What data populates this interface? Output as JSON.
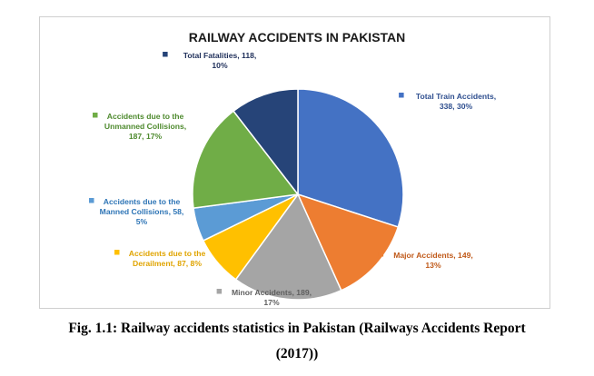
{
  "chart_data": {
    "type": "pie",
    "title": "RAILWAY ACCIDENTS IN PAKISTAN",
    "slices": [
      {
        "name": "Total Train Accidents",
        "value": 338,
        "percent": "30%",
        "color": "#4472C4",
        "text_color": "#2F4F8F",
        "label_lines": [
          "Total Train Accidents,",
          "338, 30%"
        ]
      },
      {
        "name": "Major Accidents",
        "value": 149,
        "percent": "13%",
        "color": "#ED7D31",
        "text_color": "#C05A1A",
        "label_lines": [
          "Major Accidents, 149,",
          "13%"
        ]
      },
      {
        "name": "Minor Accidents",
        "value": 189,
        "percent": "17%",
        "color": "#A5A5A5",
        "text_color": "#5F5F5F",
        "label_lines": [
          "Minor Accidents, 189,",
          "17%"
        ]
      },
      {
        "name": "Accidents due to the Derailment",
        "value": 87,
        "percent": "8%",
        "color": "#FFC000",
        "text_color": "#E0A400",
        "label_lines": [
          "Accidents due to the",
          "Derailment, 87, 8%"
        ]
      },
      {
        "name": "Accidents due to the Manned Collisions",
        "value": 58,
        "percent": "5%",
        "color": "#5B9BD5",
        "text_color": "#2E75B6",
        "label_lines": [
          "Accidents due to the",
          "Manned Collisions, 58,",
          "5%"
        ]
      },
      {
        "name": "Accidents due to the Unmanned Collisions",
        "value": 187,
        "percent": "17%",
        "color": "#70AD47",
        "text_color": "#4E8A2E",
        "label_lines": [
          "Accidents due to the",
          "Unmanned Collisions,",
          "187, 17%"
        ]
      },
      {
        "name": "Total Fatalities",
        "value": 118,
        "percent": "10%",
        "color": "#264478",
        "text_color": "#1F2F5A",
        "label_lines": [
          "Total Fatalities, 118,",
          "10%"
        ]
      }
    ],
    "legend": "none"
  },
  "caption": {
    "line1": "Fig. 1.1: Railway accidents statistics in Pakistan (Railways Accidents Report",
    "line2": "(2017))"
  }
}
